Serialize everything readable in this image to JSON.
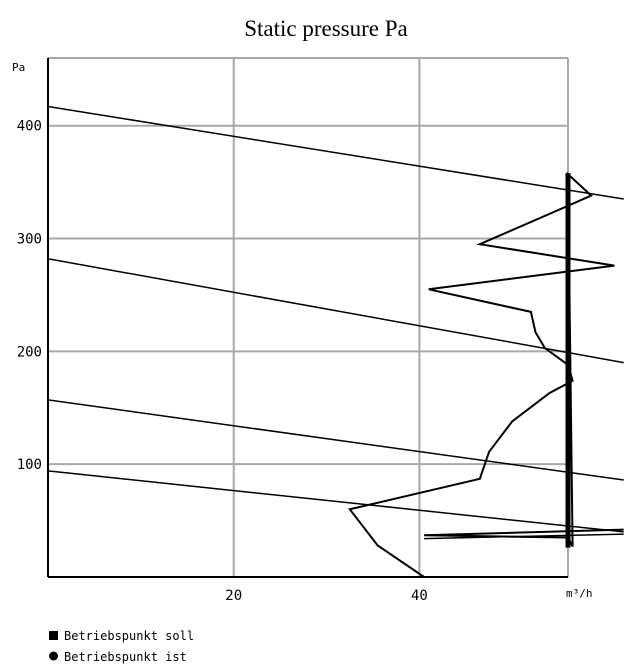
{
  "chart_data": {
    "type": "line",
    "title": "Static pressure Pa",
    "ylabel": "Pa",
    "xlabel": "m³/h",
    "xlim": [
      0,
      56
    ],
    "ylim": [
      0,
      460
    ],
    "x_ticks": [
      20,
      40
    ],
    "y_ticks": [
      100,
      200,
      300,
      400
    ],
    "grid": true,
    "series": [
      {
        "values": [
          [
            0,
            417
          ],
          [
            62,
            335
          ]
        ]
      },
      {
        "values": [
          [
            0,
            282
          ],
          [
            62,
            190
          ]
        ]
      },
      {
        "values": [
          [
            0,
            157
          ],
          [
            62,
            86
          ]
        ]
      },
      {
        "values": [
          [
            0,
            94
          ],
          [
            62,
            40
          ]
        ]
      },
      {
        "values": [
          [
            40.5,
            0
          ],
          [
            35.5,
            28
          ],
          [
            32.5,
            60
          ],
          [
            46.5,
            87
          ],
          [
            47.5,
            111
          ],
          [
            50,
            138
          ],
          [
            54,
            163
          ],
          [
            56.5,
            174
          ],
          [
            56,
            188
          ],
          [
            53.5,
            203
          ],
          [
            52.5,
            217
          ],
          [
            52,
            235
          ],
          [
            41,
            255
          ],
          [
            61,
            276
          ],
          [
            46.5,
            295
          ],
          [
            56,
            329
          ],
          [
            58.5,
            338
          ],
          [
            56,
            357
          ],
          [
            56.5,
            27
          ],
          [
            56,
            35
          ],
          [
            40.5,
            37
          ],
          [
            62,
            42
          ]
        ]
      },
      {
        "values": [
          [
            40.5,
            34
          ],
          [
            62,
            38
          ]
        ]
      }
    ],
    "legend": {
      "placement": "bottom-left",
      "entries": [
        "Betriebspunkt soll",
        "Betriebspunkt ist"
      ]
    }
  }
}
